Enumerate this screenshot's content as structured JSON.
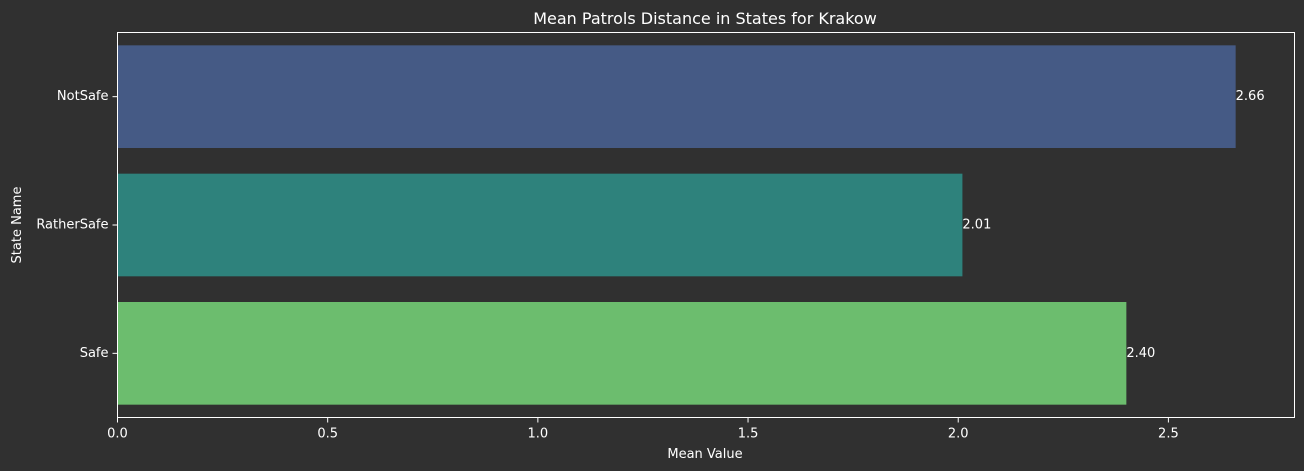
{
  "chart_data": {
    "type": "bar",
    "orientation": "horizontal",
    "title": "Mean Patrols Distance in States for Krakow",
    "xlabel": "Mean Value",
    "ylabel": "State Name",
    "categories": [
      "NotSafe",
      "RatherSafe",
      "Safe"
    ],
    "values": [
      2.66,
      2.01,
      2.4
    ],
    "value_labels": [
      "2.66",
      "2.01",
      "2.40"
    ],
    "bar_colors": [
      "#455a85",
      "#2e827c",
      "#6cbd6e"
    ],
    "xlim": [
      0,
      2.8
    ],
    "xticks": [
      0.0,
      0.5,
      1.0,
      1.5,
      2.0,
      2.5
    ],
    "xtick_labels": [
      "0.0",
      "0.5",
      "1.0",
      "1.5",
      "2.0",
      "2.5"
    ],
    "grid": false,
    "legend": "none",
    "background": "#303030",
    "text_color": "#ffffff"
  }
}
